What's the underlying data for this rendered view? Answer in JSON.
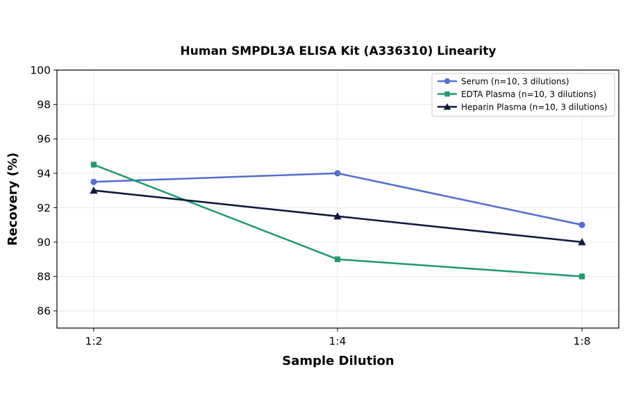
{
  "chart_data": {
    "type": "line",
    "title": "Human SMPDL3A ELISA Kit (A336310) Linearity",
    "xlabel": "Sample Dilution",
    "ylabel": "Recovery (%)",
    "categories": [
      "1:2",
      "1:4",
      "1:8"
    ],
    "ylim": [
      85,
      100
    ],
    "yticks": [
      86,
      88,
      90,
      92,
      94,
      96,
      98,
      100
    ],
    "grid": true,
    "legend_position": "top-right",
    "series": [
      {
        "name": "Serum (n=10, 3 dilutions)",
        "values": [
          93.5,
          94.0,
          91.0
        ],
        "color": "#5470d0",
        "marker": "circle"
      },
      {
        "name": "EDTA Plasma (n=10, 3 dilutions)",
        "values": [
          94.5,
          89.0,
          88.0
        ],
        "color": "#229a70",
        "marker": "square"
      },
      {
        "name": "Heparin Plasma (n=10, 3 dilutions)",
        "values": [
          93.0,
          91.5,
          90.0
        ],
        "color": "#0d1a40",
        "marker": "triangle"
      }
    ]
  }
}
